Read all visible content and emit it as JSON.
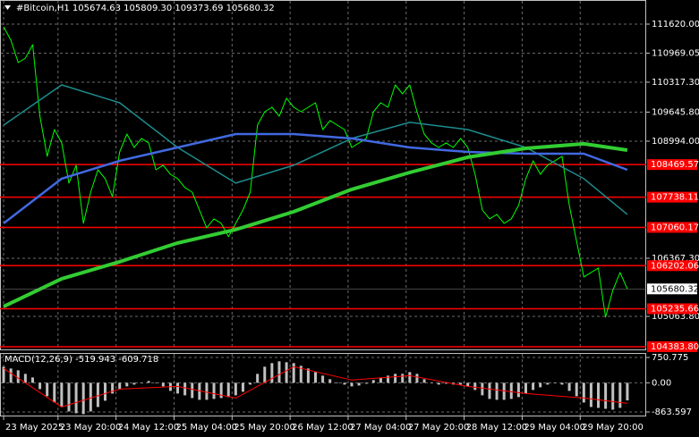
{
  "chart_data": [
    {
      "type": "line",
      "title": "#Bitcoin,H1  105674.63 105809.30 109373.69 105680.32",
      "xlim": [
        -0.5,
        88.6
      ],
      "xticks": [
        {
          "value": 0,
          "label": "23 May 2025"
        },
        {
          "value": 7.5,
          "label": "23 May 20:00"
        },
        {
          "value": 15.5,
          "label": "24 May 12:00"
        },
        {
          "value": 23.5,
          "label": "25 May 04:00"
        },
        {
          "value": 31.5,
          "label": "25 May 20:00"
        },
        {
          "value": 39.5,
          "label": "26 May 12:00"
        },
        {
          "value": 47.5,
          "label": "27 May 04:00"
        },
        {
          "value": 55.5,
          "label": "27 May 20:00"
        },
        {
          "value": 63.5,
          "label": "28 May 12:00"
        },
        {
          "value": 71.5,
          "label": "29 May 04:00"
        },
        {
          "value": 79.5,
          "label": "29 May 20:00"
        }
      ],
      "ylim": [
        104303,
        112161
      ],
      "yticks": [
        {
          "value": 111620,
          "label": "111620.00"
        },
        {
          "value": 110969.05,
          "label": "110969.05"
        },
        {
          "value": 110317.3,
          "label": "110317.30"
        },
        {
          "value": 109645.8,
          "label": "109645.80"
        },
        {
          "value": 108994,
          "label": "108994.00"
        },
        {
          "value": 106367.3,
          "label": "106367.30"
        },
        {
          "value": 105063.8,
          "label": "105063.80"
        }
      ],
      "grid": true,
      "series": [
        {
          "color": "#00ff00",
          "width": 1,
          "values": [
            111560,
            111259,
            110758,
            110858,
            111159,
            109556,
            108654,
            109255,
            108955,
            108053,
            108454,
            107151,
            107852,
            108353,
            108153,
            107752,
            108754,
            109155,
            108854,
            109055,
            108955,
            108353,
            108454,
            108253,
            108153,
            107953,
            107852,
            107452,
            107051,
            107251,
            107151,
            106850,
            107151,
            107452,
            107852,
            109355,
            109656,
            109756,
            109556,
            109957,
            109756,
            109656,
            109756,
            109856,
            109255,
            109456,
            109355,
            109255,
            108854,
            108955,
            109055,
            109656,
            109856,
            109756,
            110257,
            110057,
            110257,
            109656,
            109155,
            108955,
            108854,
            108955,
            108854,
            109055,
            108854,
            108253,
            107452,
            107251,
            107351,
            107151,
            107251,
            107552,
            108153,
            108554,
            108253,
            108454,
            108554,
            108654,
            107552,
            106750,
            105949,
            106049,
            106149,
            105047,
            105648,
            106049,
            105680
          ]
        },
        {
          "color": "#1e8c8c",
          "width": 1.5,
          "x": [
            0,
            8,
            16,
            24,
            32,
            40,
            48,
            56,
            64,
            72,
            80,
            86
          ],
          "values": [
            109355,
            110257,
            109856,
            108854,
            108053,
            108454,
            109055,
            109416,
            109255,
            108854,
            108153,
            107351
          ]
        },
        {
          "color": "#4169e1",
          "width": 2.5,
          "x": [
            0,
            8,
            16,
            24,
            32,
            40,
            48,
            56,
            64,
            72,
            80,
            86
          ],
          "values": [
            107151,
            108153,
            108554,
            108854,
            109155,
            109155,
            109055,
            108854,
            108754,
            108714,
            108714,
            108353
          ]
        },
        {
          "color": "#32cd32",
          "width": 4,
          "x": [
            0,
            8,
            16,
            24,
            32,
            40,
            48,
            56,
            64,
            72,
            80,
            86
          ],
          "values": [
            105287,
            105908,
            106289,
            106710,
            107011,
            107412,
            107913,
            108293,
            108634,
            108834,
            108935,
            108794
          ]
        }
      ],
      "levels_color": "#ff0000",
      "levels": [
        {
          "value": 108469.57,
          "label": "108469.57"
        },
        {
          "value": 107738.11,
          "label": "107738.11"
        },
        {
          "value": 107060.17,
          "label": "107060.17"
        },
        {
          "value": 106202.06,
          "label": "106202.06"
        },
        {
          "value": 105235.66,
          "label": "105235.66"
        },
        {
          "value": 104383.8,
          "label": "104383.80"
        }
      ],
      "current": {
        "value": 105680.32,
        "label": "105680.32"
      }
    },
    {
      "type": "bar",
      "title": "MACD(12,26,9) -519.943 -609.718",
      "xlim": [
        -0.5,
        88.6
      ],
      "ylim": [
        -996,
        883
      ],
      "yticks": [
        750.775,
        {
          "value": 0,
          "label": "0.00"
        },
        -863.597
      ],
      "grid": true,
      "series": [
        {
          "color": "#c0c0c0",
          "values": [
            477,
            424,
            371,
            265,
            159,
            -186,
            -398,
            -583,
            -716,
            -848,
            -901,
            -928,
            -848,
            -716,
            -530,
            -318,
            -186,
            -106,
            -53,
            0,
            53,
            0,
            -106,
            -239,
            -318,
            -371,
            -451,
            -504,
            -504,
            -477,
            -451,
            -424,
            -371,
            -265,
            -53,
            265,
            477,
            583,
            636,
            610,
            583,
            504,
            424,
            318,
            212,
            106,
            0,
            -53,
            -106,
            -80,
            -27,
            80,
            159,
            212,
            265,
            265,
            318,
            265,
            106,
            0,
            -53,
            -27,
            -53,
            -53,
            -106,
            -212,
            -371,
            -477,
            -504,
            -504,
            -477,
            -424,
            -318,
            -212,
            -133,
            -53,
            0,
            -53,
            -239,
            -398,
            -583,
            -716,
            -742,
            -769,
            -795,
            -742,
            -520
          ]
        },
        {
          "type": "line",
          "color": "#ff0000",
          "width": 1,
          "x": [
            0,
            8,
            16,
            24,
            32,
            40,
            48,
            56,
            64,
            72,
            80,
            86
          ],
          "values": [
            424,
            -716,
            -186,
            -106,
            -451,
            477,
            80,
            212,
            -106,
            -318,
            -451,
            -610
          ]
        }
      ]
    }
  ]
}
